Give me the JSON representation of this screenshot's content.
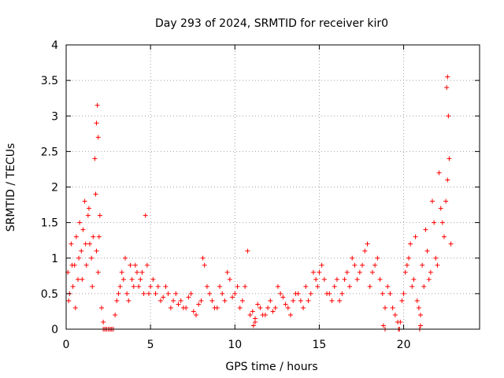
{
  "chart_data": {
    "type": "scatter",
    "title": "Day 293 of 2024, SRMTID for receiver kir0",
    "xlabel": "GPS time / hours",
    "ylabel": "SRMTID / TECUs",
    "xlim": [
      0,
      24.5
    ],
    "ylim": [
      0,
      4
    ],
    "x_ticks": [
      0,
      5,
      10,
      15,
      20
    ],
    "x_tick_labels": [
      "0",
      "5",
      "10",
      "15",
      "20"
    ],
    "y_ticks": [
      0,
      0.5,
      1,
      1.5,
      2,
      2.5,
      3,
      3.5,
      4
    ],
    "y_tick_labels": [
      "0",
      "0.5",
      "1",
      "1.5",
      "2",
      "2.5",
      "3",
      "3.5",
      "4"
    ],
    "grid": true,
    "marker": "+",
    "series_color": "#ff0000",
    "series": [
      {
        "name": "SRMTID",
        "x": [
          0.1,
          0.2,
          0.3,
          0.4,
          0.5,
          0.6,
          0.7,
          0.8,
          0.9,
          1.0,
          1.1,
          1.2,
          1.3,
          1.4,
          1.5,
          1.6,
          1.7,
          1.8,
          1.9,
          2.0,
          2.1,
          2.2,
          2.3,
          2.5,
          2.7,
          2.9,
          3.0,
          3.2,
          3.4,
          3.6,
          3.8,
          4.0,
          4.2,
          4.4,
          4.6,
          4.8,
          5.0,
          5.3,
          5.6,
          5.9,
          6.2,
          6.5,
          6.8,
          7.1,
          7.4,
          7.7,
          8.0,
          8.2,
          8.5,
          8.8,
          9.1,
          9.4,
          9.7,
          10.0,
          10.3,
          10.6,
          10.9,
          11.2,
          11.5,
          11.8,
          12.1,
          12.4,
          12.7,
          13.0,
          13.3,
          13.6,
          13.9,
          14.2,
          14.5,
          14.8,
          15.0,
          15.3,
          15.6,
          15.9,
          16.2,
          16.5,
          16.8,
          17.1,
          17.4,
          17.7,
          18.0,
          18.3,
          18.6,
          18.9,
          19.2,
          19.5,
          19.8,
          20.0,
          20.2,
          20.4,
          20.6,
          20.8,
          21.0,
          21.2,
          21.4,
          21.6,
          21.8,
          22.0,
          22.2,
          22.4,
          22.6,
          22.8,
          0.15,
          0.35,
          0.55,
          0.75,
          0.95,
          1.15,
          1.35,
          1.55,
          1.75,
          1.95,
          2.4,
          2.6,
          2.8,
          3.1,
          3.3,
          3.5,
          3.7,
          3.9,
          4.1,
          4.3,
          4.5,
          4.7,
          4.9,
          5.15,
          5.45,
          5.75,
          6.05,
          6.35,
          6.65,
          6.95,
          7.25,
          7.55,
          7.85,
          8.1,
          8.35,
          8.65,
          8.95,
          9.25,
          9.55,
          9.85,
          10.15,
          10.45,
          10.75,
          11.05,
          11.35,
          11.65,
          11.95,
          12.25,
          12.55,
          12.85,
          13.15,
          13.45,
          13.75,
          14.05,
          14.35,
          14.65,
          14.9,
          15.15,
          15.45,
          15.75,
          16.05,
          16.35,
          16.65,
          16.95,
          17.25,
          17.55,
          17.85,
          18.15,
          18.45,
          18.75,
          19.05,
          19.35,
          19.65,
          19.9,
          20.1,
          20.3,
          20.5,
          20.7,
          20.9,
          21.1,
          21.3,
          21.5,
          21.7,
          21.9,
          22.1,
          22.3,
          22.5,
          22.7,
          1.8,
          1.85,
          1.9,
          22.6,
          22.65,
          22.55,
          2.2,
          2.3,
          2.4,
          2.6,
          2.7,
          19.7,
          19.75,
          11.2,
          11.1,
          18.8,
          18.9,
          21.0,
          20.95
        ],
        "y": [
          0.8,
          0.5,
          1.2,
          0.6,
          0.9,
          1.3,
          0.7,
          1.5,
          1.1,
          1.4,
          1.8,
          0.9,
          1.6,
          1.2,
          1.0,
          1.3,
          2.4,
          1.1,
          0.8,
          1.6,
          0.3,
          0.1,
          0.0,
          0.0,
          0.0,
          0.2,
          0.4,
          0.6,
          0.7,
          0.5,
          0.9,
          0.6,
          0.8,
          0.7,
          0.5,
          0.9,
          0.6,
          0.5,
          0.4,
          0.6,
          0.3,
          0.5,
          0.4,
          0.3,
          0.5,
          0.2,
          0.4,
          0.9,
          0.5,
          0.3,
          0.6,
          0.4,
          0.7,
          0.5,
          0.3,
          0.6,
          0.2,
          0.15,
          0.3,
          0.2,
          0.4,
          0.3,
          0.5,
          0.35,
          0.2,
          0.5,
          0.4,
          0.6,
          0.5,
          0.7,
          0.8,
          0.7,
          0.5,
          0.6,
          0.4,
          0.7,
          0.6,
          0.9,
          0.8,
          1.1,
          0.6,
          0.9,
          0.7,
          0.3,
          0.5,
          0.2,
          0.1,
          0.5,
          0.9,
          1.2,
          0.7,
          0.4,
          0.2,
          0.6,
          1.1,
          0.8,
          1.5,
          0.9,
          1.7,
          1.3,
          2.1,
          1.2,
          0.4,
          0.9,
          0.3,
          1.0,
          0.7,
          1.2,
          1.7,
          0.6,
          1.9,
          1.3,
          0.0,
          0.0,
          0.0,
          0.5,
          0.8,
          1.0,
          0.4,
          0.7,
          0.9,
          0.6,
          0.8,
          1.6,
          0.5,
          0.7,
          0.6,
          0.45,
          0.5,
          0.4,
          0.35,
          0.3,
          0.45,
          0.25,
          0.35,
          1.0,
          0.6,
          0.4,
          0.3,
          0.5,
          0.8,
          0.45,
          0.6,
          0.4,
          1.1,
          0.25,
          0.35,
          0.2,
          0.3,
          0.25,
          0.6,
          0.45,
          0.3,
          0.4,
          0.5,
          0.3,
          0.4,
          0.8,
          0.6,
          0.9,
          0.5,
          0.4,
          0.7,
          0.5,
          0.8,
          1.0,
          0.7,
          0.9,
          1.2,
          0.8,
          1.0,
          0.5,
          0.6,
          0.3,
          0.1,
          0.4,
          0.8,
          1.0,
          0.6,
          1.3,
          0.3,
          0.9,
          1.4,
          0.7,
          1.8,
          1.0,
          2.2,
          1.5,
          1.8,
          2.4,
          2.9,
          3.15,
          2.7,
          3.55,
          3.0,
          3.4,
          0.0,
          0.0,
          0.0,
          0.0,
          0.0,
          0.0,
          0.0,
          0.1,
          0.05,
          0.05,
          0.0,
          0.05,
          0.0
        ]
      }
    ]
  }
}
